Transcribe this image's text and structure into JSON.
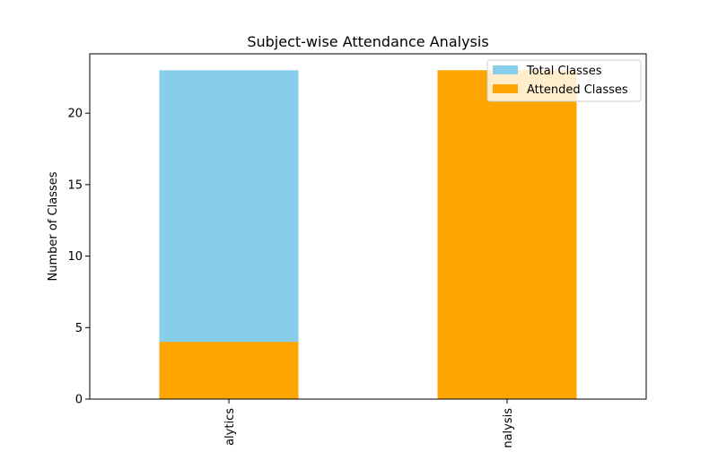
{
  "chart_data": {
    "type": "bar",
    "stacked": false,
    "title": "Subject-wise Attendance Analysis",
    "xlabel": "",
    "ylabel": "Number of Classes",
    "categories": [
      "alytics",
      "nalysis"
    ],
    "series": [
      {
        "name": "Total Classes",
        "color": "#87ceeb",
        "values": [
          23,
          23
        ]
      },
      {
        "name": "Attended Classes",
        "color": "#ffa500",
        "values": [
          4,
          23
        ]
      }
    ],
    "ylim": [
      0,
      24.15
    ],
    "yticks": [
      0,
      5,
      10,
      15,
      20
    ],
    "grid": false,
    "legend_position": "top-right"
  }
}
